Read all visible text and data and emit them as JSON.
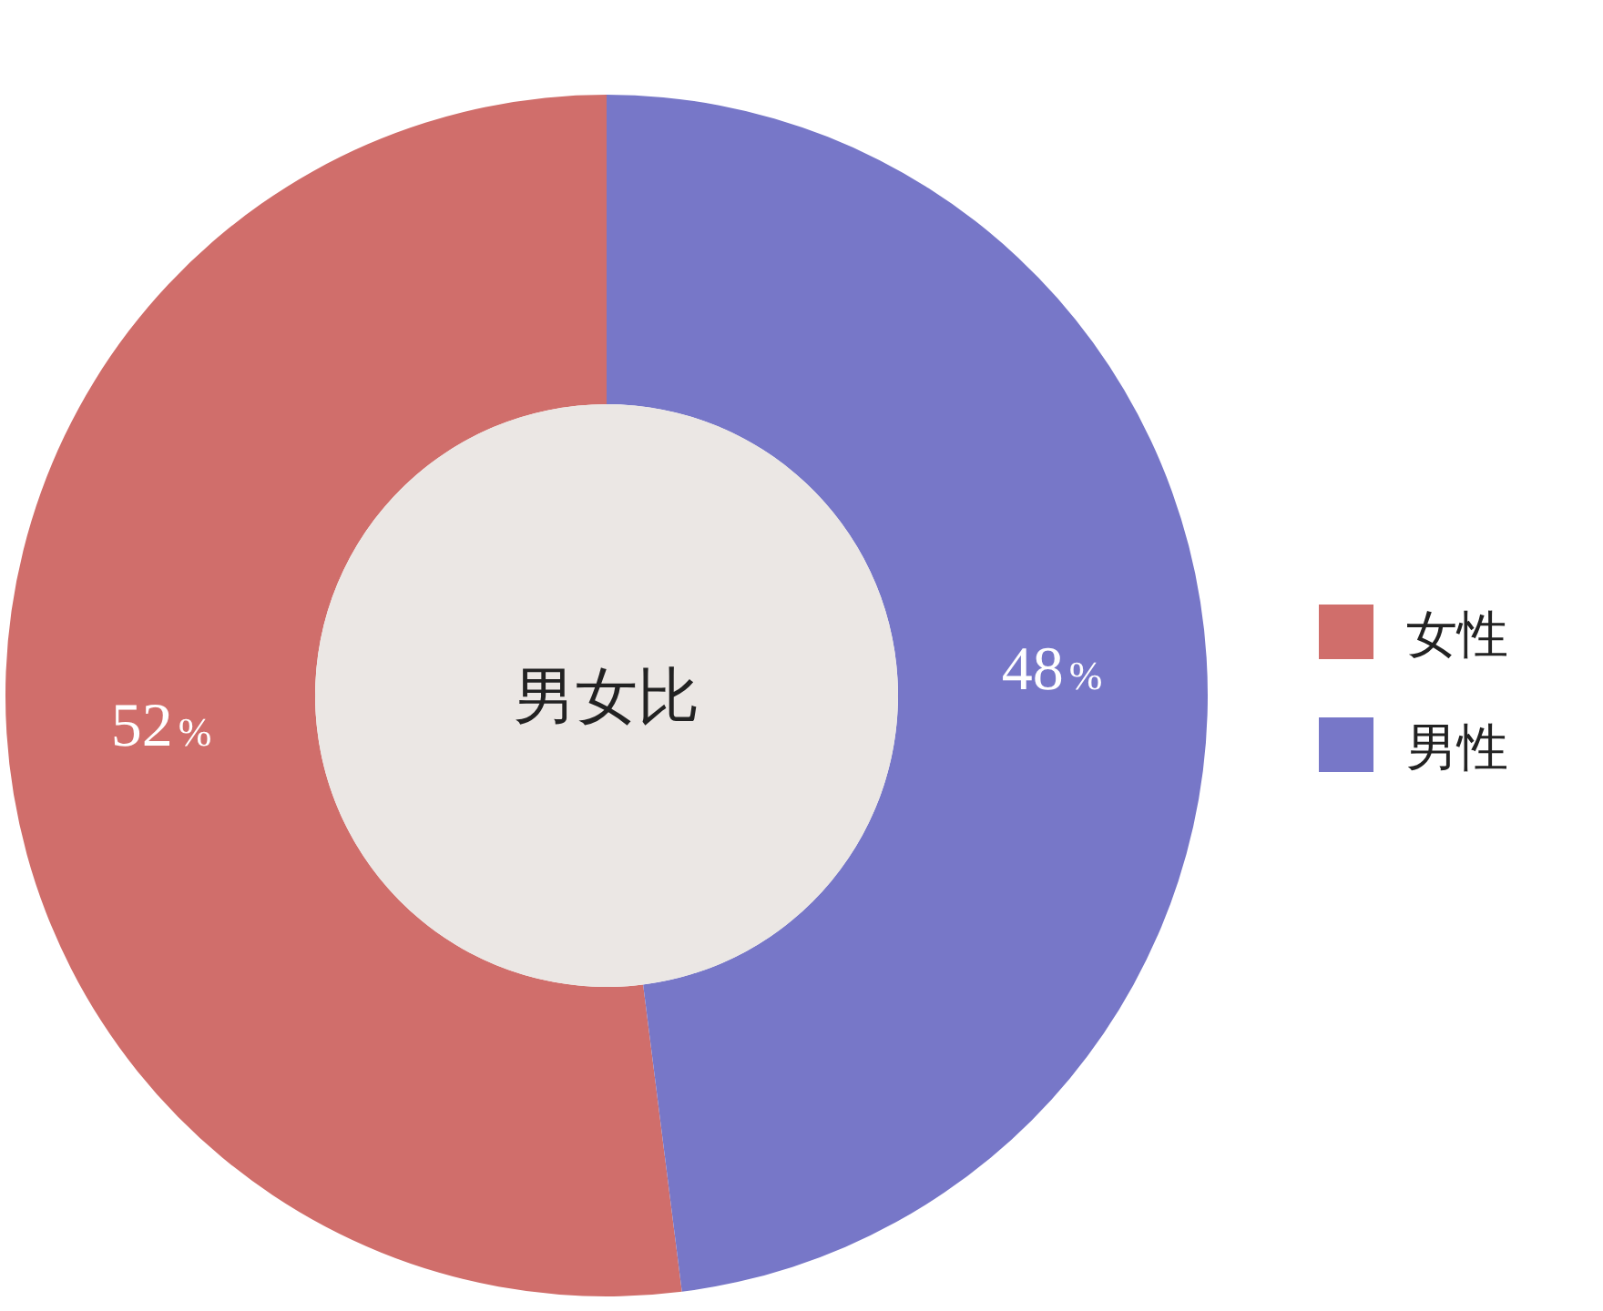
{
  "chart_data": {
    "type": "donut",
    "title": "男女比",
    "categories": [
      "女性",
      "男性"
    ],
    "values": [
      52,
      48
    ],
    "colors": [
      "#d06e6b",
      "#7777c8"
    ],
    "value_labels": [
      "52%",
      "48%"
    ],
    "legend": "right"
  }
}
